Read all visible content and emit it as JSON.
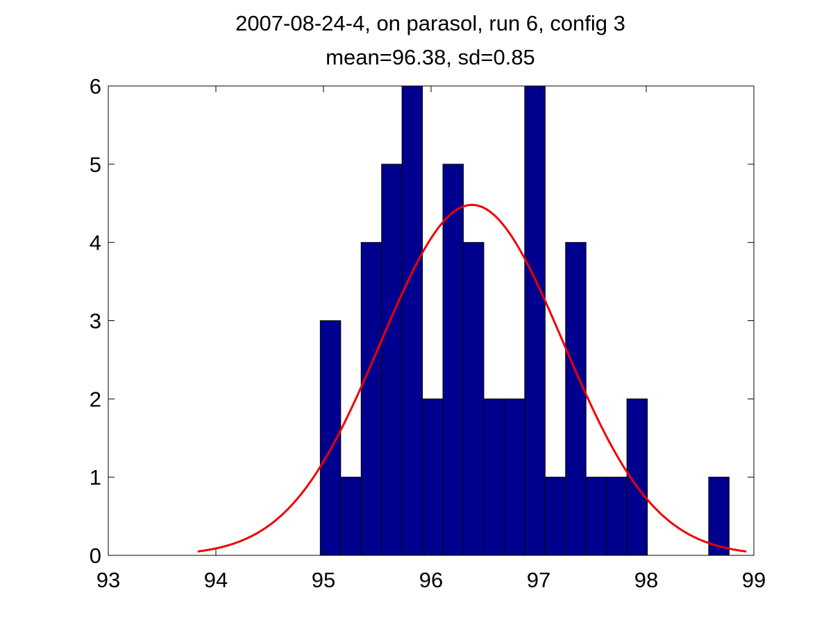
{
  "chart_data": {
    "type": "bar",
    "title": "2007-08-24-4, on parasol, run 6, config 3",
    "subtitle": "mean=96.38, sd=0.85",
    "xlabel": "",
    "ylabel": "",
    "xlim": [
      93,
      99
    ],
    "ylim": [
      0,
      6
    ],
    "x_ticks": [
      "93",
      "94",
      "95",
      "96",
      "97",
      "98",
      "99"
    ],
    "y_ticks": [
      "0",
      "1",
      "2",
      "3",
      "4",
      "5",
      "6"
    ],
    "grid": false,
    "legend": "none",
    "bin_width": 0.19,
    "bins": [
      {
        "start": 94.97,
        "count": 3
      },
      {
        "start": 95.16,
        "count": 1
      },
      {
        "start": 95.35,
        "count": 4
      },
      {
        "start": 95.54,
        "count": 5
      },
      {
        "start": 95.73,
        "count": 6
      },
      {
        "start": 95.92,
        "count": 2
      },
      {
        "start": 96.11,
        "count": 5
      },
      {
        "start": 96.3,
        "count": 4
      },
      {
        "start": 96.49,
        "count": 2
      },
      {
        "start": 96.68,
        "count": 2
      },
      {
        "start": 96.87,
        "count": 6
      },
      {
        "start": 97.06,
        "count": 1
      },
      {
        "start": 97.25,
        "count": 4
      },
      {
        "start": 97.44,
        "count": 1
      },
      {
        "start": 97.63,
        "count": 1
      },
      {
        "start": 97.82,
        "count": 2
      },
      {
        "start": 98.01,
        "count": 0
      },
      {
        "start": 98.2,
        "count": 0
      },
      {
        "start": 98.39,
        "count": 0
      },
      {
        "start": 98.58,
        "count": 1
      }
    ],
    "fit_curve": {
      "mean": 96.38,
      "sd": 0.85,
      "peak": 4.48,
      "x_range": [
        93.83,
        98.93
      ]
    },
    "colors": {
      "bar_fill": "#00008f",
      "bar_edge": "#000000",
      "curve": "#ee0000",
      "axes": "#000000"
    }
  }
}
